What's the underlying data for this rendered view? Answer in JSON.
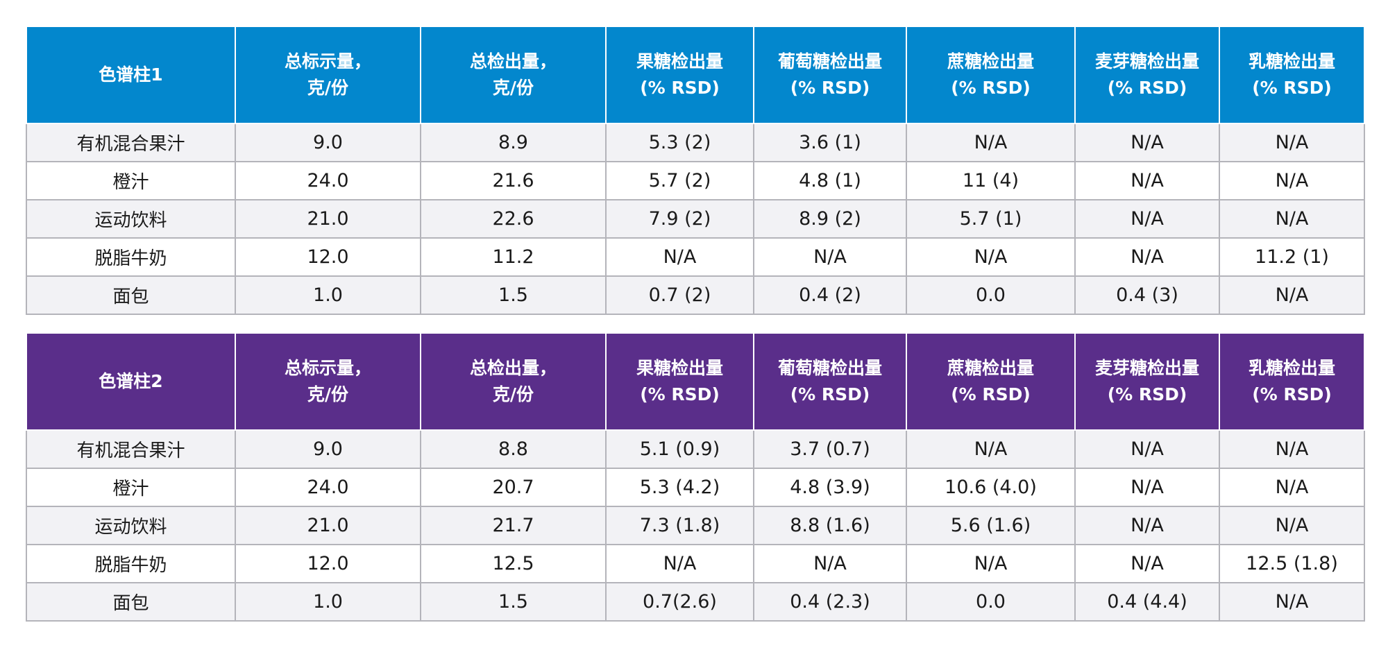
{
  "tables": [
    {
      "headers": [
        "色谱柱1",
        "总标示量，\n克/份",
        "总检出量，\n克/份",
        "果糖检出量\n(% RSD)",
        "葡萄糖检出量\n(% RSD)",
        "蔗糖检出量\n(% RSD)",
        "麦芽糖检出量\n(% RSD)",
        "乳糖检出量\n(% RSD)"
      ],
      "rows": [
        [
          "有机混合果汁",
          "9.0",
          "8.9",
          "5.3 (2)",
          "3.6 (1)",
          "N/A",
          "N/A",
          "N/A"
        ],
        [
          "橙汁",
          "24.0",
          "21.6",
          "5.7 (2)",
          "4.8 (1)",
          "11 (4)",
          "N/A",
          "N/A"
        ],
        [
          "运动饮料",
          "21.0",
          "22.6",
          "7.9 (2)",
          "8.9 (2)",
          "5.7 (1)",
          "N/A",
          "N/A"
        ],
        [
          "脱脂牛奶",
          "12.0",
          "11.2",
          "N/A",
          "N/A",
          "N/A",
          "N/A",
          "11.2 (1)"
        ],
        [
          "面包",
          "1.0",
          "1.5",
          "0.7 (2)",
          "0.4 (2)",
          "0.0",
          "0.4 (3)",
          "N/A"
        ]
      ]
    },
    {
      "headers": [
        "色谱柱2",
        "总标示量，\n克/份",
        "总检出量，\n克/份",
        "果糖检出量\n(% RSD)",
        "葡萄糖检出量\n(% RSD)",
        "蔗糖检出量\n(% RSD)",
        "麦芽糖检出量\n(% RSD)",
        "乳糖检出量\n(% RSD)"
      ],
      "rows": [
        [
          "有机混合果汁",
          "9.0",
          "8.8",
          "5.1 (0.9)",
          "3.7 (0.7)",
          "N/A",
          "N/A",
          "N/A"
        ],
        [
          "橙汁",
          "24.0",
          "20.7",
          "5.3 (4.2)",
          "4.8 (3.9)",
          "10.6 (4.0)",
          "N/A",
          "N/A"
        ],
        [
          "运动饮料",
          "21.0",
          "21.7",
          "7.3 (1.8)",
          "8.8 (1.6)",
          "5.6 (1.6)",
          "N/A",
          "N/A"
        ],
        [
          "脱脂牛奶",
          "12.0",
          "12.5",
          "N/A",
          "N/A",
          "N/A",
          "N/A",
          "12.5 (1.8)"
        ],
        [
          "面包",
          "1.0",
          "1.5",
          "0.7(2.6)",
          "0.4 (2.3)",
          "0.0",
          "0.4 (4.4)",
          "N/A"
        ]
      ]
    }
  ],
  "colors": {
    "table1_header": "#0387cd",
    "table2_header": "#5a2e8a",
    "row_odd": "#f2f2f5",
    "row_even": "#ffffff",
    "border": "#b4b4ba"
  }
}
